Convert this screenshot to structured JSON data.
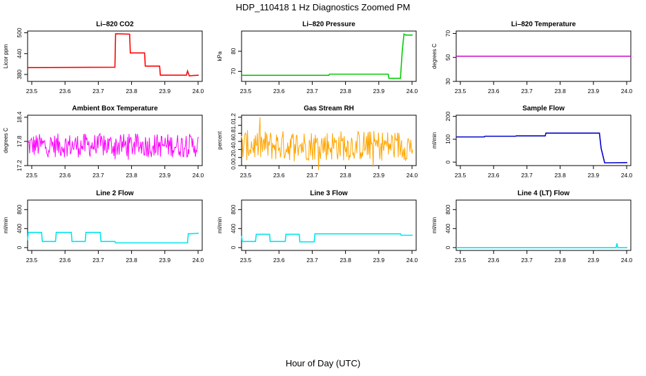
{
  "page": {
    "title": "HDP_110418  1 Hz Diagnostics Zoomed PM",
    "xlabel": "Hour of Day (UTC)"
  },
  "chart_data": [
    {
      "type": "line",
      "title": "Li–820 CO2",
      "ylabel": "Licor ppm",
      "color": "#ff0000",
      "xlim": [
        23.5,
        24.0
      ],
      "ylim": [
        360,
        505
      ],
      "x_ticks": [
        "23.5",
        "23.6",
        "23.7",
        "23.8",
        "23.9",
        "24.0"
      ],
      "y_ticks": [
        380,
        440,
        500
      ],
      "series": [
        {
          "x": [
            23.5,
            23.75,
            23.752,
            23.792,
            23.794,
            23.835,
            23.837,
            23.878,
            23.88,
            23.955,
            23.958,
            23.963,
            23.99
          ],
          "y": [
            400,
            401,
            497,
            496,
            442,
            442,
            404,
            404,
            378,
            378,
            390,
            376,
            378
          ]
        }
      ]
    },
    {
      "type": "line",
      "title": "Li–820 Pressure",
      "ylabel": "kPa",
      "color": "#00cc00",
      "xlim": [
        23.5,
        24.0
      ],
      "ylim": [
        65,
        90
      ],
      "x_ticks": [
        "23.5",
        "23.6",
        "23.7",
        "23.8",
        "23.9",
        "24.0"
      ],
      "y_ticks": [
        70,
        80
      ],
      "series": [
        {
          "x": [
            23.5,
            23.75,
            23.752,
            23.92,
            23.922,
            23.955,
            23.96,
            23.965,
            23.97,
            23.99
          ],
          "y": [
            68,
            68,
            68.6,
            68.6,
            66.5,
            66.5,
            80,
            88.5,
            88,
            88
          ]
        }
      ]
    },
    {
      "type": "line",
      "title": "Li–820 Temperature",
      "ylabel": "degrees C",
      "color": "#cc00cc",
      "xlim": [
        23.5,
        24.0
      ],
      "ylim": [
        30,
        72
      ],
      "x_ticks": [
        "23.5",
        "23.6",
        "23.7",
        "23.8",
        "23.9",
        "24.0"
      ],
      "y_ticks": [
        30,
        50,
        70
      ],
      "series": [
        {
          "x": [
            23.5,
            24.0
          ],
          "y": [
            51,
            51
          ]
        }
      ]
    },
    {
      "type": "line",
      "title": "Ambient Box Temperature",
      "ylabel": "degrees C",
      "color": "#ff00ff",
      "xlim": [
        23.5,
        24.0
      ],
      "ylim": [
        17.2,
        18.45
      ],
      "x_ticks": [
        "23.5",
        "23.6",
        "23.7",
        "23.8",
        "23.9",
        "24.0"
      ],
      "y_ticks": [
        17.2,
        17.8,
        18.4
      ],
      "series": [
        {
          "x": [
            23.5,
            23.99
          ],
          "y": [
            17.65,
            17.65
          ],
          "noise_band": [
            17.35,
            18.05
          ]
        }
      ]
    },
    {
      "type": "line",
      "title": "Gas Stream RH",
      "ylabel": "percent",
      "color": "#ffa500",
      "xlim": [
        23.5,
        24.0
      ],
      "ylim": [
        0,
        1.25
      ],
      "x_ticks": [
        "23.5",
        "23.6",
        "23.7",
        "23.8",
        "23.9",
        "24.0"
      ],
      "y_ticks": [
        0.0,
        0.2,
        0.4,
        0.6,
        0.8,
        1.0,
        1.2
      ],
      "series": [
        {
          "x": [
            23.5,
            23.99
          ],
          "y": [
            0.4,
            0.4
          ],
          "noise_band": [
            0.05,
            0.95
          ]
        }
      ]
    },
    {
      "type": "line",
      "title": "Sample Flow",
      "ylabel": "ml/min",
      "color": "#0000cc",
      "xlim": [
        23.5,
        24.0
      ],
      "ylim": [
        -15,
        205
      ],
      "x_ticks": [
        "23.5",
        "23.6",
        "23.7",
        "23.8",
        "23.9",
        "24.0"
      ],
      "y_ticks": [
        0,
        100,
        200
      ],
      "series": [
        {
          "x": [
            23.5,
            23.58,
            23.582,
            23.67,
            23.672,
            23.755,
            23.757,
            23.91,
            23.915,
            23.925,
            23.99
          ],
          "y": [
            110,
            110,
            113,
            113,
            115,
            115,
            127,
            127,
            60,
            -3,
            -2
          ]
        }
      ]
    },
    {
      "type": "line",
      "title": "Line 2 Flow",
      "ylabel": "ml/min",
      "color": "#00e5ee",
      "xlim": [
        23.5,
        24.0
      ],
      "ylim": [
        -60,
        1000
      ],
      "x_ticks": [
        "23.5",
        "23.6",
        "23.7",
        "23.8",
        "23.9",
        "24.0"
      ],
      "y_ticks": [
        0,
        400,
        800
      ],
      "series": [
        {
          "x": [
            23.5,
            23.502,
            23.54,
            23.542,
            23.58,
            23.582,
            23.625,
            23.627,
            23.665,
            23.667,
            23.708,
            23.71,
            23.75,
            23.752,
            23.958,
            23.96,
            23.99
          ],
          "y": [
            150,
            320,
            320,
            130,
            130,
            320,
            320,
            130,
            130,
            320,
            320,
            130,
            130,
            100,
            100,
            290,
            300
          ]
        }
      ]
    },
    {
      "type": "line",
      "title": "Line 3 Flow",
      "ylabel": "ml/min",
      "color": "#00e5ee",
      "xlim": [
        23.5,
        24.0
      ],
      "ylim": [
        -60,
        1000
      ],
      "x_ticks": [
        "23.5",
        "23.6",
        "23.7",
        "23.8",
        "23.9",
        "24.0"
      ],
      "y_ticks": [
        0,
        400,
        800
      ],
      "series": [
        {
          "x": [
            23.5,
            23.502,
            23.54,
            23.542,
            23.58,
            23.582,
            23.625,
            23.627,
            23.665,
            23.667,
            23.708,
            23.71,
            23.955,
            23.957,
            23.99
          ],
          "y": [
            250,
            130,
            130,
            280,
            280,
            130,
            130,
            280,
            280,
            120,
            120,
            290,
            290,
            260,
            260
          ]
        }
      ]
    },
    {
      "type": "line",
      "title": "Line 4 (LT) Flow",
      "ylabel": "ml/min",
      "color": "#00e5ee",
      "xlim": [
        23.5,
        24.0
      ],
      "ylim": [
        -60,
        1000
      ],
      "x_ticks": [
        "23.5",
        "23.6",
        "23.7",
        "23.8",
        "23.9",
        "24.0"
      ],
      "y_ticks": [
        0,
        400,
        800
      ],
      "series": [
        {
          "x": [
            23.5,
            23.958,
            23.96,
            23.962,
            23.964,
            23.99
          ],
          "y": [
            0,
            0,
            90,
            10,
            0,
            0
          ]
        }
      ]
    }
  ]
}
